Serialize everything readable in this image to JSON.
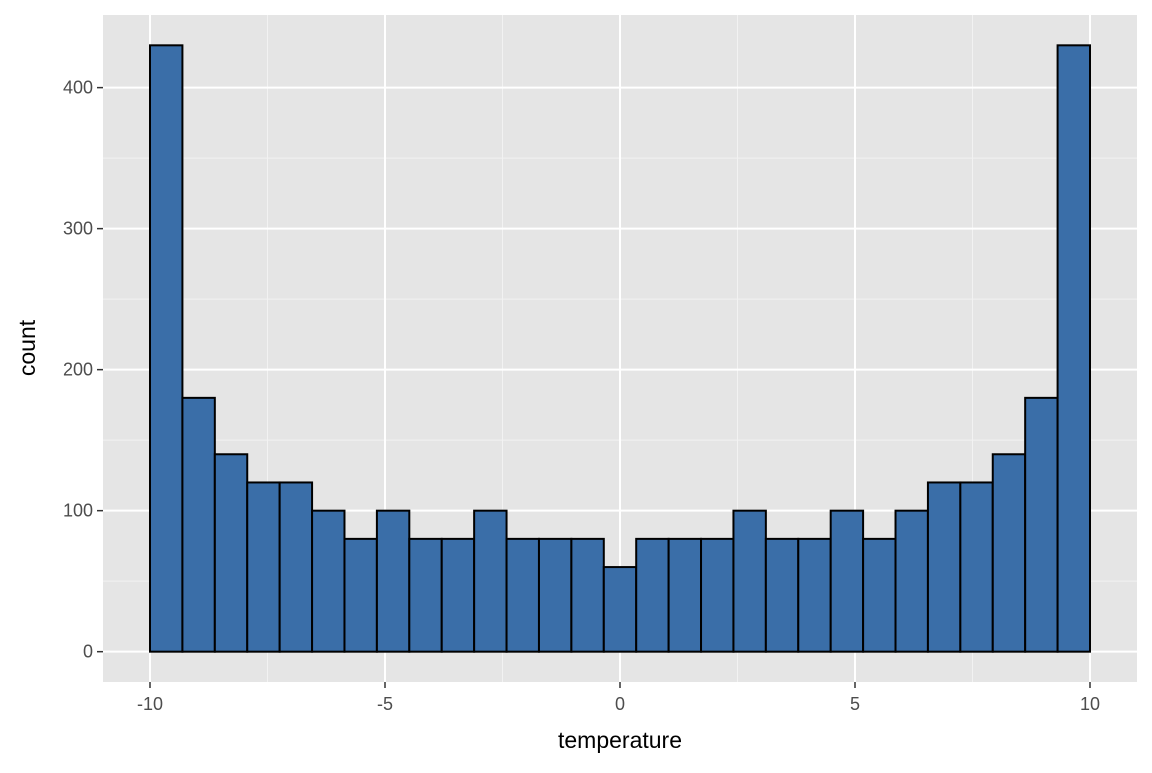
{
  "chart_data": {
    "type": "histogram",
    "x_label": "temperature",
    "y_label": "count",
    "bins": [
      -10,
      -9.3103,
      -8.6207,
      -7.931,
      -7.2414,
      -6.5517,
      -5.8621,
      -5.1724,
      -4.4828,
      -3.7931,
      -3.1034,
      -2.4138,
      -1.7241,
      -1.0345,
      -0.3448,
      0.3448,
      1.0345,
      1.7241,
      2.4138,
      3.1034,
      3.7931,
      4.4828,
      5.1724,
      5.8621,
      6.5517,
      7.2414,
      7.931,
      8.6207,
      9.3103,
      10
    ],
    "values": [
      430,
      180,
      140,
      120,
      120,
      100,
      80,
      100,
      80,
      80,
      100,
      80,
      80,
      80,
      60,
      80,
      80,
      80,
      100,
      80,
      80,
      100,
      80,
      100,
      120,
      120,
      140,
      180,
      430
    ],
    "color": "#3a6ea8",
    "xlim": [
      -11,
      11
    ],
    "xticks": [
      -10,
      -5,
      0,
      5,
      10
    ],
    "ylim": [
      -21.5,
      451.5
    ],
    "yticks": [
      0,
      100,
      200,
      300,
      400
    ],
    "grid": true
  }
}
